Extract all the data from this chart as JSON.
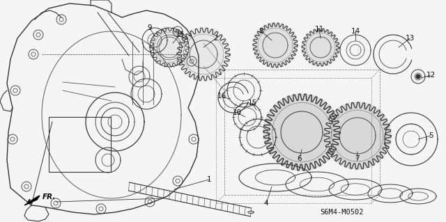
{
  "part_number": "S6M4-M0502",
  "bg_color": "#f5f5f5",
  "fig_width": 6.4,
  "fig_height": 3.19,
  "dpi": 100,
  "line_color": "#333333",
  "text_color": "#111111",
  "light_line": "#666666"
}
